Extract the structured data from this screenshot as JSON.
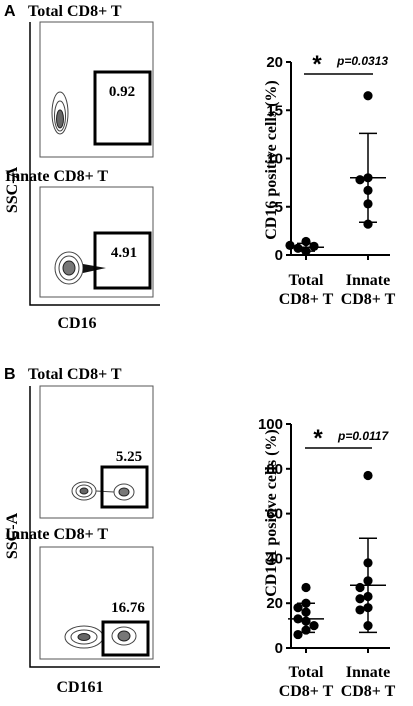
{
  "panels": [
    {
      "letter": "A",
      "flow": {
        "top_title": "Total CD8+ T",
        "bottom_title": "Innate CD8+ T",
        "y_label": "SSC-A",
        "x_label": "CD16",
        "top_gate_value": "0.92",
        "bottom_gate_value": "4.91"
      }
    },
    {
      "letter": "B",
      "flow": {
        "top_title": "Total CD8+ T",
        "bottom_title": "Innate CD8+ T",
        "y_label": "SSC-A",
        "x_label": "CD161",
        "top_gate_value": "5.25",
        "bottom_gate_value": "16.76"
      }
    }
  ],
  "chart_data": [
    {
      "type": "scatter",
      "ylabel": "CD16 positive cells (%)",
      "ylim": [
        0,
        20
      ],
      "yticks": [
        0,
        5,
        10,
        15,
        20
      ],
      "categories": [
        {
          "line1": "Total",
          "line2": "CD8+ T"
        },
        {
          "line1": "Innate",
          "line2": "CD8+ T"
        }
      ],
      "groups": [
        {
          "values": [
            0.4,
            0.7,
            0.9,
            1.0,
            1.4
          ],
          "mean": 0.8,
          "sd_low": 0.4,
          "sd_high": 1.2
        },
        {
          "values": [
            16.5,
            8.0,
            7.8,
            6.7,
            5.3,
            3.2
          ],
          "mean": 8.0,
          "sd_low": 3.4,
          "sd_high": 12.6
        }
      ],
      "significance": {
        "star": "*",
        "p_text": "p=0.0313"
      }
    },
    {
      "type": "scatter",
      "ylabel": "CD161 positive cells (%)",
      "ylim": [
        0,
        100
      ],
      "yticks": [
        0,
        20,
        40,
        60,
        80,
        100
      ],
      "categories": [
        {
          "line1": "Total",
          "line2": "CD8+ T"
        },
        {
          "line1": "Innate",
          "line2": "CD8+ T"
        }
      ],
      "groups": [
        {
          "values": [
            27,
            20,
            18,
            16,
            13,
            12,
            10,
            8,
            6
          ],
          "mean": 13,
          "sd_low": 7,
          "sd_high": 20
        },
        {
          "values": [
            77,
            38,
            30,
            27,
            23,
            22,
            18,
            17,
            10
          ],
          "mean": 28,
          "sd_low": 7,
          "sd_high": 49
        }
      ],
      "significance": {
        "star": "*",
        "p_text": "p=0.0117"
      }
    }
  ]
}
